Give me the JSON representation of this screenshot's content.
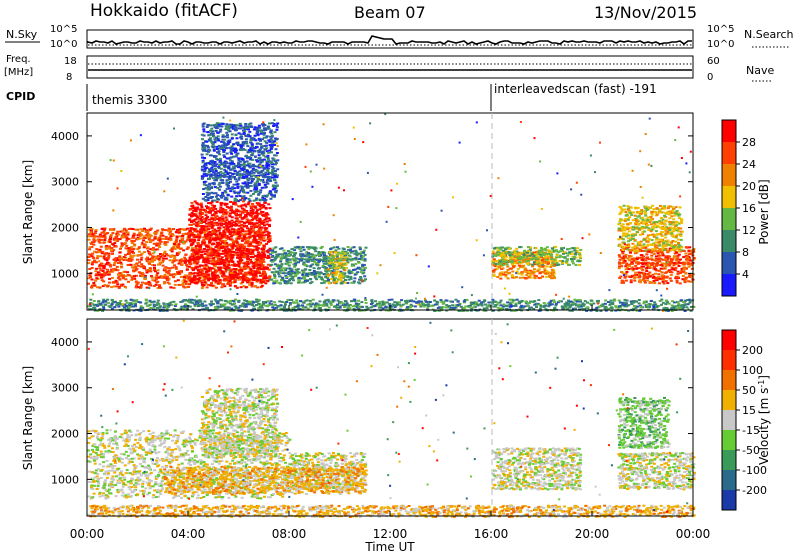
{
  "header": {
    "title": "Hokkaido (fitACF)",
    "beam": "Beam 07",
    "date": "13/Nov/2015"
  },
  "noise_panel": {
    "left_label": "N.Sky",
    "left_ticks": [
      "10^5",
      "10^0"
    ],
    "right_ticks": [
      "10^5",
      "10^0"
    ],
    "right_label": "N.Search"
  },
  "freq_panel": {
    "left_label_1": "Freq.",
    "left_label_2": "[MHz]",
    "left_ticks": [
      "18",
      "8"
    ],
    "right_ticks": [
      "60",
      "0"
    ],
    "right_label": "Nave"
  },
  "cpid": {
    "label": "CPID",
    "segments": [
      {
        "name": "themis 3300",
        "start_hour": 0
      },
      {
        "name": "interleavedscan (fast) -191",
        "start_hour": 16
      }
    ]
  },
  "x_axis": {
    "label": "Time UT",
    "ticks": [
      "00:00",
      "04:00",
      "08:00",
      "12:00",
      "16:00",
      "20:00",
      "00:00"
    ],
    "range_hours": [
      0,
      24
    ]
  },
  "power_colorbar": {
    "label": "Power [dB]",
    "ticks": [
      "4",
      "8",
      "12",
      "16",
      "20",
      "24",
      "28"
    ],
    "colors": [
      "#1a1aff",
      "#2a55b0",
      "#3a8a6a",
      "#66b844",
      "#f0c000",
      "#f08000",
      "#ff4000",
      "#ff0000"
    ]
  },
  "velocity_colorbar": {
    "label_main": "Velocity [m s",
    "label_sup": "-1",
    "label_close": "]",
    "ticks": [
      "200",
      "100",
      "50",
      "15",
      "-15",
      "-50",
      "-100",
      "-200"
    ],
    "colors": [
      "#1a3aa8",
      "#2a6a8a",
      "#3a9a5a",
      "#66cc33",
      "#c8c8c8",
      "#f0b000",
      "#f07000",
      "#ff3000",
      "#ff0000"
    ]
  },
  "chart_data": [
    {
      "type": "heatmap",
      "ylabel": "Slant Range [km]",
      "yticks": [
        "1000",
        "2000",
        "3000",
        "4000"
      ],
      "ylim": [
        200,
        4500
      ],
      "xlim": [
        0,
        24
      ],
      "blobs": [
        {
          "t0": 0.0,
          "t1": 7.0,
          "r0": 700,
          "r1": 2000,
          "level": 6
        },
        {
          "t0": 4.0,
          "t1": 7.2,
          "r0": 800,
          "r1": 2600,
          "level": 7
        },
        {
          "t0": 7.2,
          "t1": 11.0,
          "r0": 800,
          "r1": 1600,
          "level": 2
        },
        {
          "t0": 9.5,
          "t1": 10.2,
          "r0": 800,
          "r1": 1500,
          "level": 4
        },
        {
          "t0": 16.0,
          "t1": 18.5,
          "r0": 900,
          "r1": 1500,
          "level": 5
        },
        {
          "t0": 16.0,
          "t1": 19.5,
          "r0": 1200,
          "r1": 1600,
          "level": 3
        },
        {
          "t0": 21.0,
          "t1": 24.0,
          "r0": 800,
          "r1": 1600,
          "level": 6
        },
        {
          "t0": 21.0,
          "t1": 23.5,
          "r0": 1500,
          "r1": 2500,
          "level": 4
        },
        {
          "t0": 0.0,
          "t1": 24.0,
          "r0": 200,
          "r1": 450,
          "level": 2
        },
        {
          "t0": 4.5,
          "t1": 7.5,
          "r0": 2600,
          "r1": 4300,
          "level": 1
        }
      ]
    },
    {
      "type": "heatmap",
      "ylabel": "Slant Range [km]",
      "yticks": [
        "1000",
        "2000",
        "3000",
        "4000"
      ],
      "ylim": [
        200,
        4500
      ],
      "xlim": [
        0,
        24
      ],
      "blobs": [
        {
          "t0": 0.0,
          "t1": 8.0,
          "r0": 600,
          "r1": 2100,
          "level": 4
        },
        {
          "t0": 4.5,
          "t1": 7.5,
          "r0": 1500,
          "r1": 3000,
          "level": 4
        },
        {
          "t0": 8.0,
          "t1": 11.0,
          "r0": 800,
          "r1": 1600,
          "level": 4
        },
        {
          "t0": 16.0,
          "t1": 19.5,
          "r0": 800,
          "r1": 1700,
          "level": 4
        },
        {
          "t0": 21.0,
          "t1": 24.0,
          "r0": 800,
          "r1": 1600,
          "level": 4
        },
        {
          "t0": 21.0,
          "t1": 23.0,
          "r0": 1700,
          "r1": 2800,
          "level": 3
        },
        {
          "t0": 0.0,
          "t1": 24.0,
          "r0": 200,
          "r1": 450,
          "level": 5
        },
        {
          "t0": 3.0,
          "t1": 11.0,
          "r0": 700,
          "r1": 1300,
          "level": 5
        }
      ]
    }
  ]
}
